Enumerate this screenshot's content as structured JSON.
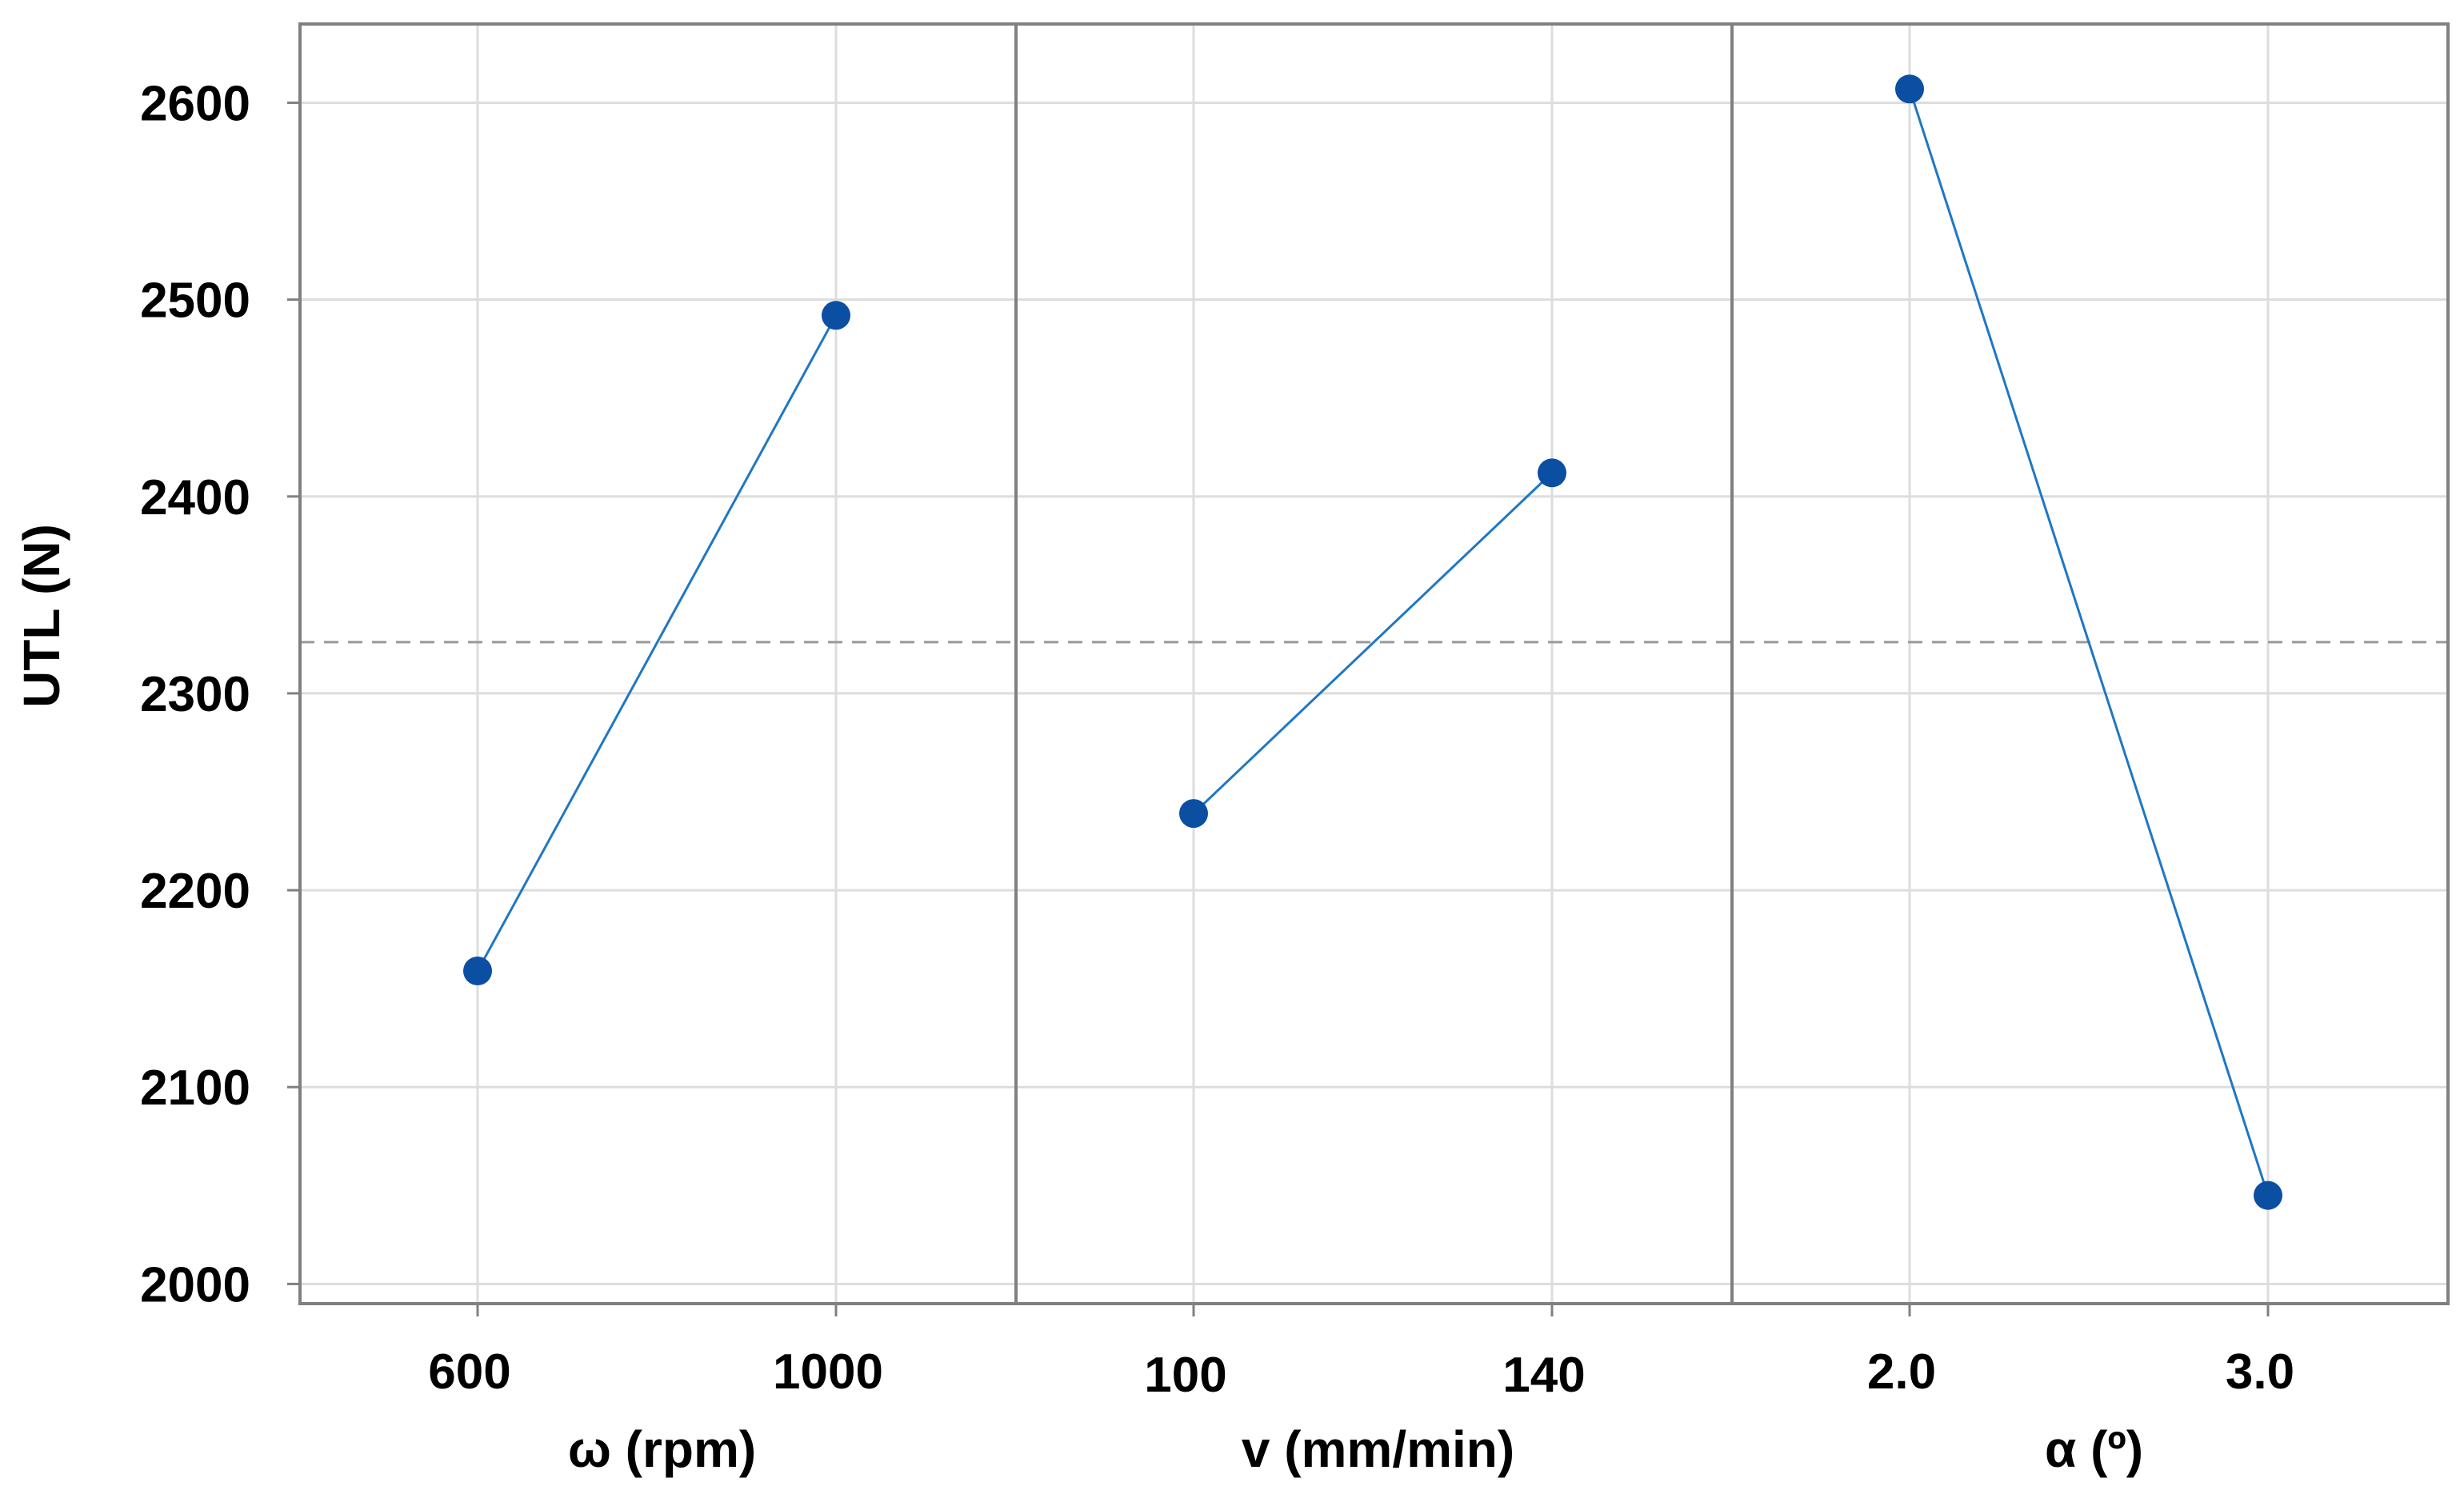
{
  "chart_data": {
    "type": "line",
    "title": "",
    "ylabel": "UTL (N)",
    "ylim": [
      1990,
      2640
    ],
    "yticks": [
      2000,
      2100,
      2200,
      2300,
      2400,
      2500,
      2600
    ],
    "mean": 2326,
    "grid": true,
    "colors": {
      "line": "#1f77c4",
      "marker": "#0b4fa3",
      "mean_line": "#9a9a9a",
      "frame": "#808080",
      "grid": "#dddddd"
    },
    "panels": [
      {
        "xlabel": "ω (rpm)",
        "categories": [
          "600",
          "1000"
        ],
        "values": [
          2159,
          2492
        ]
      },
      {
        "xlabel": "v (mm/min)",
        "categories": [
          "100",
          "140"
        ],
        "values": [
          2239,
          2412
        ]
      },
      {
        "xlabel": "α (º)",
        "categories": [
          "2.0",
          "3.0"
        ],
        "values": [
          2607,
          2045
        ]
      }
    ]
  }
}
